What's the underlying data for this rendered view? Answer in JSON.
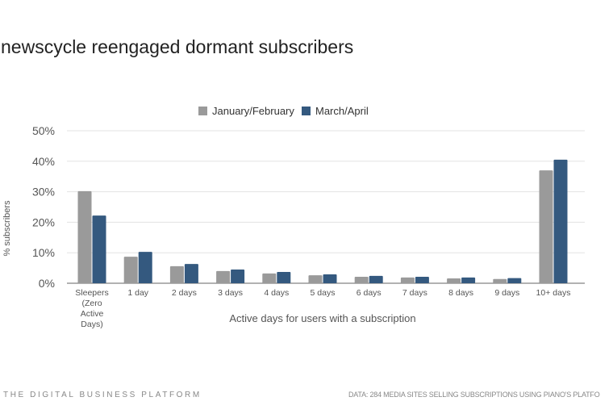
{
  "title": "newscycle reengaged dormant subscribers",
  "footer": {
    "left": "THE DIGITAL BUSINESS PLATFORM",
    "right": "DATA: 284 MEDIA SITES SELLING SUBSCRIPTIONS USING PIANO'S PLATFO"
  },
  "chart_data": {
    "type": "bar",
    "title": "",
    "xlabel": "Active days for users with a subscription",
    "ylabel": "% subscribers",
    "ylim": [
      0,
      50
    ],
    "yticks": [
      "0%",
      "10%",
      "20%",
      "30%",
      "40%",
      "50%"
    ],
    "grid": true,
    "legend_position": "top",
    "categories": [
      [
        "Sleepers",
        "(Zero",
        "Active",
        "Days)"
      ],
      [
        "1 day"
      ],
      [
        "2 days"
      ],
      [
        "3 days"
      ],
      [
        "4 days"
      ],
      [
        "5 days"
      ],
      [
        "6 days"
      ],
      [
        "7 days"
      ],
      [
        "8 days"
      ],
      [
        "9 days"
      ],
      [
        "10+ days"
      ]
    ],
    "series": [
      {
        "name": "January/February",
        "color": "#9a9a9a",
        "values": [
          30.2,
          8.7,
          5.6,
          4.0,
          3.2,
          2.6,
          2.1,
          1.9,
          1.6,
          1.4,
          37.0
        ]
      },
      {
        "name": "March/April",
        "color": "#34597f",
        "values": [
          22.2,
          10.3,
          6.3,
          4.5,
          3.7,
          2.9,
          2.4,
          2.1,
          1.9,
          1.7,
          40.5
        ]
      }
    ]
  }
}
